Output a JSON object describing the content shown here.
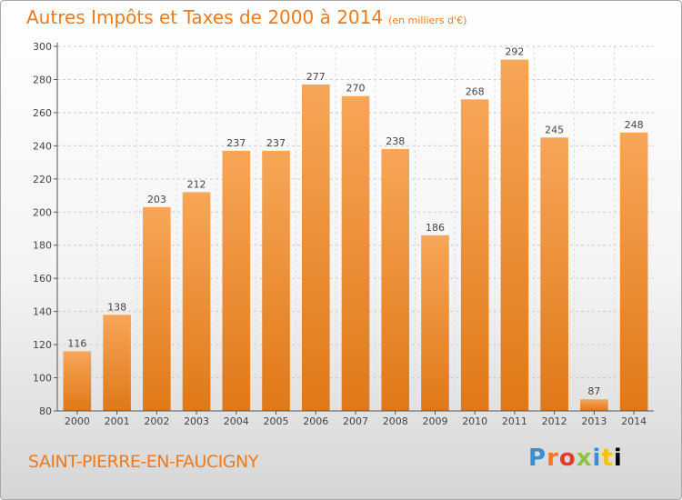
{
  "header": {
    "title": "Autres Impôts et Taxes de 2000 à 2014",
    "unit": "(en milliers d'€)"
  },
  "footer": {
    "place": "SAINT-PIERRE-EN-FAUCIGNY",
    "brand_letters": [
      "P",
      "r",
      "o",
      "x",
      "i",
      "t",
      "i"
    ]
  },
  "colors": {
    "bar_light": "#f7a657",
    "bar_dark": "#e07817",
    "accent": "#f07a1a",
    "axis": "#555555",
    "grid": "#cccccc"
  },
  "chart_data": {
    "type": "bar",
    "title": "Autres Impôts et Taxes de 2000 à 2014",
    "subtitle": "(en milliers d'€)",
    "categories": [
      "2000",
      "2001",
      "2002",
      "2003",
      "2004",
      "2005",
      "2006",
      "2007",
      "2008",
      "2009",
      "2010",
      "2011",
      "2012",
      "2013",
      "2014"
    ],
    "values": [
      116,
      138,
      203,
      212,
      237,
      237,
      277,
      270,
      238,
      186,
      268,
      292,
      245,
      87,
      248
    ],
    "ylim": [
      80,
      300
    ],
    "yticks": [
      80,
      100,
      120,
      140,
      160,
      180,
      200,
      220,
      240,
      260,
      280,
      300
    ],
    "grid": "horizontal dashed",
    "legend": "none"
  }
}
